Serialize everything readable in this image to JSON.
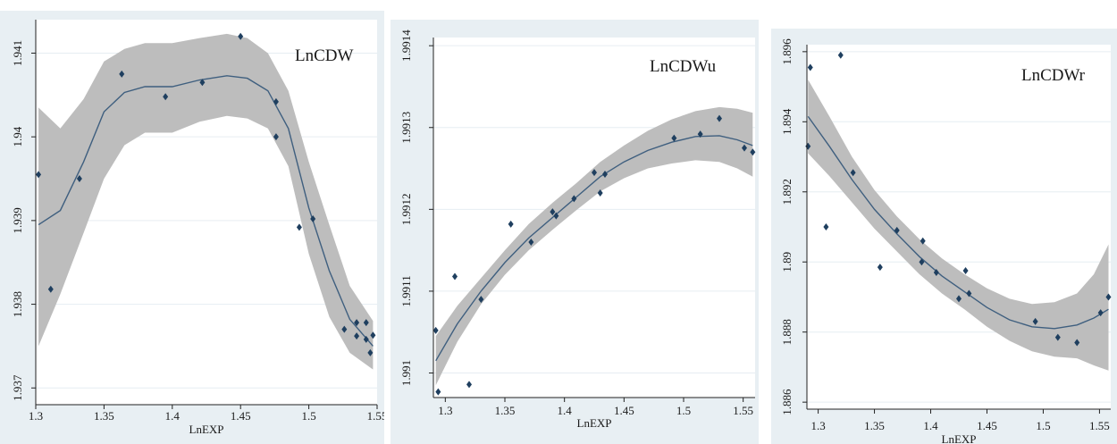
{
  "chart_data": [
    {
      "type": "scatter",
      "title": "LnCDW",
      "xlabel": "LnEXP",
      "ylabel": "",
      "xlim": [
        1.3,
        1.55
      ],
      "ylim": [
        1.9368,
        1.9414
      ],
      "xticks": [
        "1.3",
        "1.35",
        "1.4",
        "1.45",
        "1.5",
        "1.55"
      ],
      "xtick_values": [
        1.3,
        1.35,
        1.4,
        1.45,
        1.5,
        1.55
      ],
      "yticks": [
        "1.937",
        "1.938",
        "1.939",
        "1.94",
        "1.941"
      ],
      "ytick_values": [
        1.937,
        1.938,
        1.939,
        1.94,
        1.941
      ],
      "grid": true,
      "colors": {
        "marker": "#1f3f5f",
        "fit": "#3f5f7f",
        "band": "#bdbdbd",
        "frame": "#e8eff3"
      },
      "points": [
        [
          1.302,
          1.93955
        ],
        [
          1.311,
          1.93818
        ],
        [
          1.332,
          1.9395
        ],
        [
          1.363,
          1.94075
        ],
        [
          1.395,
          1.94048
        ],
        [
          1.422,
          1.94065
        ],
        [
          1.45,
          1.9412
        ],
        [
          1.476,
          1.94042
        ],
        [
          1.476,
          1.94
        ],
        [
          1.493,
          1.93892
        ],
        [
          1.503,
          1.93902
        ],
        [
          1.526,
          1.9377
        ],
        [
          1.535,
          1.93778
        ],
        [
          1.535,
          1.93762
        ],
        [
          1.542,
          1.93778
        ],
        [
          1.542,
          1.93758
        ],
        [
          1.545,
          1.93742
        ],
        [
          1.547,
          1.93763
        ]
      ],
      "fit": [
        [
          1.302,
          1.93895
        ],
        [
          1.318,
          1.93912
        ],
        [
          1.335,
          1.9397
        ],
        [
          1.35,
          1.9403
        ],
        [
          1.365,
          1.94053
        ],
        [
          1.38,
          1.9406
        ],
        [
          1.4,
          1.9406
        ],
        [
          1.42,
          1.94068
        ],
        [
          1.44,
          1.94073
        ],
        [
          1.455,
          1.9407
        ],
        [
          1.47,
          1.94055
        ],
        [
          1.485,
          1.9401
        ],
        [
          1.5,
          1.93915
        ],
        [
          1.515,
          1.9384
        ],
        [
          1.53,
          1.93782
        ],
        [
          1.547,
          1.9375
        ]
      ],
      "ci_upper": [
        [
          1.302,
          1.94035
        ],
        [
          1.318,
          1.9401
        ],
        [
          1.335,
          1.94045
        ],
        [
          1.35,
          1.9409
        ],
        [
          1.365,
          1.94105
        ],
        [
          1.38,
          1.94112
        ],
        [
          1.4,
          1.94112
        ],
        [
          1.42,
          1.94118
        ],
        [
          1.44,
          1.94123
        ],
        [
          1.455,
          1.94118
        ],
        [
          1.47,
          1.941
        ],
        [
          1.485,
          1.94055
        ],
        [
          1.5,
          1.9397
        ],
        [
          1.515,
          1.93895
        ],
        [
          1.53,
          1.93822
        ],
        [
          1.547,
          1.9378
        ]
      ],
      "ci_lower": [
        [
          1.302,
          1.9375
        ],
        [
          1.318,
          1.93812
        ],
        [
          1.335,
          1.93885
        ],
        [
          1.35,
          1.9395
        ],
        [
          1.365,
          1.9399
        ],
        [
          1.38,
          1.94005
        ],
        [
          1.4,
          1.94005
        ],
        [
          1.42,
          1.94018
        ],
        [
          1.44,
          1.94025
        ],
        [
          1.455,
          1.94022
        ],
        [
          1.47,
          1.9401
        ],
        [
          1.485,
          1.93965
        ],
        [
          1.5,
          1.9386
        ],
        [
          1.515,
          1.93785
        ],
        [
          1.53,
          1.93742
        ],
        [
          1.547,
          1.93722
        ]
      ]
    },
    {
      "type": "scatter",
      "title": "LnCDWu",
      "xlabel": "LnEXP",
      "ylabel": "",
      "xlim": [
        1.29,
        1.56
      ],
      "ylim": [
        1.99097,
        1.99141
      ],
      "xticks": [
        "1.3",
        "1.35",
        "1.4",
        "1.45",
        "1.5",
        "1.55"
      ],
      "xtick_values": [
        1.3,
        1.35,
        1.4,
        1.45,
        1.5,
        1.55
      ],
      "yticks": [
        "1.991",
        "1.9911",
        "1.9912",
        "1.9913",
        "1.9914"
      ],
      "ytick_values": [
        1.991,
        1.9911,
        1.9912,
        1.9913,
        1.9914
      ],
      "grid": true,
      "colors": {
        "marker": "#1f3f5f",
        "fit": "#3f5f7f",
        "band": "#bdbdbd",
        "frame": "#e8eff3"
      },
      "points": [
        [
          1.292,
          1.991052
        ],
        [
          1.294,
          1.990977
        ],
        [
          1.308,
          1.991118
        ],
        [
          1.32,
          1.990986
        ],
        [
          1.33,
          1.99109
        ],
        [
          1.355,
          1.991182
        ],
        [
          1.372,
          1.99116
        ],
        [
          1.39,
          1.991197
        ],
        [
          1.393,
          1.991192
        ],
        [
          1.408,
          1.991213
        ],
        [
          1.425,
          1.991245
        ],
        [
          1.43,
          1.99122
        ],
        [
          1.434,
          1.991243
        ],
        [
          1.492,
          1.991287
        ],
        [
          1.514,
          1.991292
        ],
        [
          1.53,
          1.991311
        ],
        [
          1.551,
          1.991275
        ],
        [
          1.558,
          1.99127
        ]
      ],
      "fit": [
        [
          1.292,
          1.991015
        ],
        [
          1.31,
          1.99106
        ],
        [
          1.33,
          1.9911
        ],
        [
          1.35,
          1.991135
        ],
        [
          1.37,
          1.991165
        ],
        [
          1.39,
          1.99119
        ],
        [
          1.41,
          1.991215
        ],
        [
          1.43,
          1.99124
        ],
        [
          1.45,
          1.991258
        ],
        [
          1.47,
          1.991272
        ],
        [
          1.49,
          1.991282
        ],
        [
          1.51,
          1.991289
        ],
        [
          1.53,
          1.99129
        ],
        [
          1.545,
          1.991285
        ],
        [
          1.558,
          1.991278
        ]
      ],
      "ci_upper": [
        [
          1.292,
          1.991045
        ],
        [
          1.31,
          1.991082
        ],
        [
          1.33,
          1.991116
        ],
        [
          1.35,
          1.99115
        ],
        [
          1.37,
          1.991182
        ],
        [
          1.39,
          1.991208
        ],
        [
          1.41,
          1.991232
        ],
        [
          1.43,
          1.991258
        ],
        [
          1.45,
          1.991278
        ],
        [
          1.47,
          1.991296
        ],
        [
          1.49,
          1.99131
        ],
        [
          1.51,
          1.99132
        ],
        [
          1.53,
          1.991325
        ],
        [
          1.545,
          1.991323
        ],
        [
          1.558,
          1.991318
        ]
      ],
      "ci_lower": [
        [
          1.292,
          1.990985
        ],
        [
          1.31,
          1.991038
        ],
        [
          1.33,
          1.991084
        ],
        [
          1.35,
          1.99112
        ],
        [
          1.37,
          1.99115
        ],
        [
          1.39,
          1.991175
        ],
        [
          1.41,
          1.991199
        ],
        [
          1.43,
          1.991222
        ],
        [
          1.45,
          1.991238
        ],
        [
          1.47,
          1.99125
        ],
        [
          1.49,
          1.991256
        ],
        [
          1.51,
          1.99126
        ],
        [
          1.53,
          1.991258
        ],
        [
          1.545,
          1.99125
        ],
        [
          1.558,
          1.99124
        ]
      ]
    },
    {
      "type": "scatter",
      "title": "LnCDWr",
      "xlabel": "LnEXP",
      "ylabel": "",
      "xlim": [
        1.29,
        1.56
      ],
      "ylim": [
        1.8858,
        1.8962
      ],
      "xticks": [
        "1.3",
        "1.35",
        "1.4",
        "1.45",
        "1.5",
        "1.55"
      ],
      "xtick_values": [
        1.3,
        1.35,
        1.4,
        1.45,
        1.5,
        1.55
      ],
      "yticks": [
        "1.886",
        "1.888",
        "1.89",
        "1.892",
        "1.894",
        "1.896"
      ],
      "ytick_values": [
        1.886,
        1.888,
        1.89,
        1.892,
        1.894,
        1.896
      ],
      "grid": true,
      "colors": {
        "marker": "#1f3f5f",
        "fit": "#3f5f7f",
        "band": "#bdbdbd",
        "frame": "#e8eff3"
      },
      "points": [
        [
          1.291,
          1.8933
        ],
        [
          1.293,
          1.89555
        ],
        [
          1.307,
          1.891
        ],
        [
          1.32,
          1.8959
        ],
        [
          1.331,
          1.89255
        ],
        [
          1.355,
          1.88985
        ],
        [
          1.37,
          1.8909
        ],
        [
          1.392,
          1.89
        ],
        [
          1.393,
          1.8906
        ],
        [
          1.405,
          1.8897
        ],
        [
          1.425,
          1.88895
        ],
        [
          1.431,
          1.88975
        ],
        [
          1.434,
          1.8891
        ],
        [
          1.493,
          1.8883
        ],
        [
          1.513,
          1.88785
        ],
        [
          1.53,
          1.8877
        ],
        [
          1.551,
          1.88855
        ],
        [
          1.558,
          1.889
        ]
      ],
      "fit": [
        [
          1.291,
          1.89415
        ],
        [
          1.31,
          1.8933
        ],
        [
          1.33,
          1.89235
        ],
        [
          1.35,
          1.8915
        ],
        [
          1.37,
          1.8908
        ],
        [
          1.39,
          1.89015
        ],
        [
          1.41,
          1.8896
        ],
        [
          1.43,
          1.88915
        ],
        [
          1.45,
          1.8887
        ],
        [
          1.47,
          1.88835
        ],
        [
          1.49,
          1.88815
        ],
        [
          1.51,
          1.8881
        ],
        [
          1.53,
          1.8882
        ],
        [
          1.545,
          1.8884
        ],
        [
          1.558,
          1.88865
        ]
      ],
      "ci_upper": [
        [
          1.291,
          1.8952
        ],
        [
          1.31,
          1.89415
        ],
        [
          1.33,
          1.893
        ],
        [
          1.35,
          1.89205
        ],
        [
          1.37,
          1.8913
        ],
        [
          1.39,
          1.89065
        ],
        [
          1.41,
          1.8901
        ],
        [
          1.43,
          1.88965
        ],
        [
          1.45,
          1.88925
        ],
        [
          1.47,
          1.88895
        ],
        [
          1.49,
          1.8888
        ],
        [
          1.51,
          1.88885
        ],
        [
          1.53,
          1.8891
        ],
        [
          1.545,
          1.88965
        ],
        [
          1.558,
          1.8905
        ]
      ],
      "ci_lower": [
        [
          1.291,
          1.8931
        ],
        [
          1.31,
          1.89245
        ],
        [
          1.33,
          1.8917
        ],
        [
          1.35,
          1.89095
        ],
        [
          1.37,
          1.8903
        ],
        [
          1.39,
          1.88965
        ],
        [
          1.41,
          1.8891
        ],
        [
          1.43,
          1.88865
        ],
        [
          1.45,
          1.88815
        ],
        [
          1.47,
          1.88775
        ],
        [
          1.49,
          1.88745
        ],
        [
          1.51,
          1.8873
        ],
        [
          1.53,
          1.88725
        ],
        [
          1.545,
          1.88705
        ],
        [
          1.558,
          1.8869
        ]
      ]
    }
  ]
}
